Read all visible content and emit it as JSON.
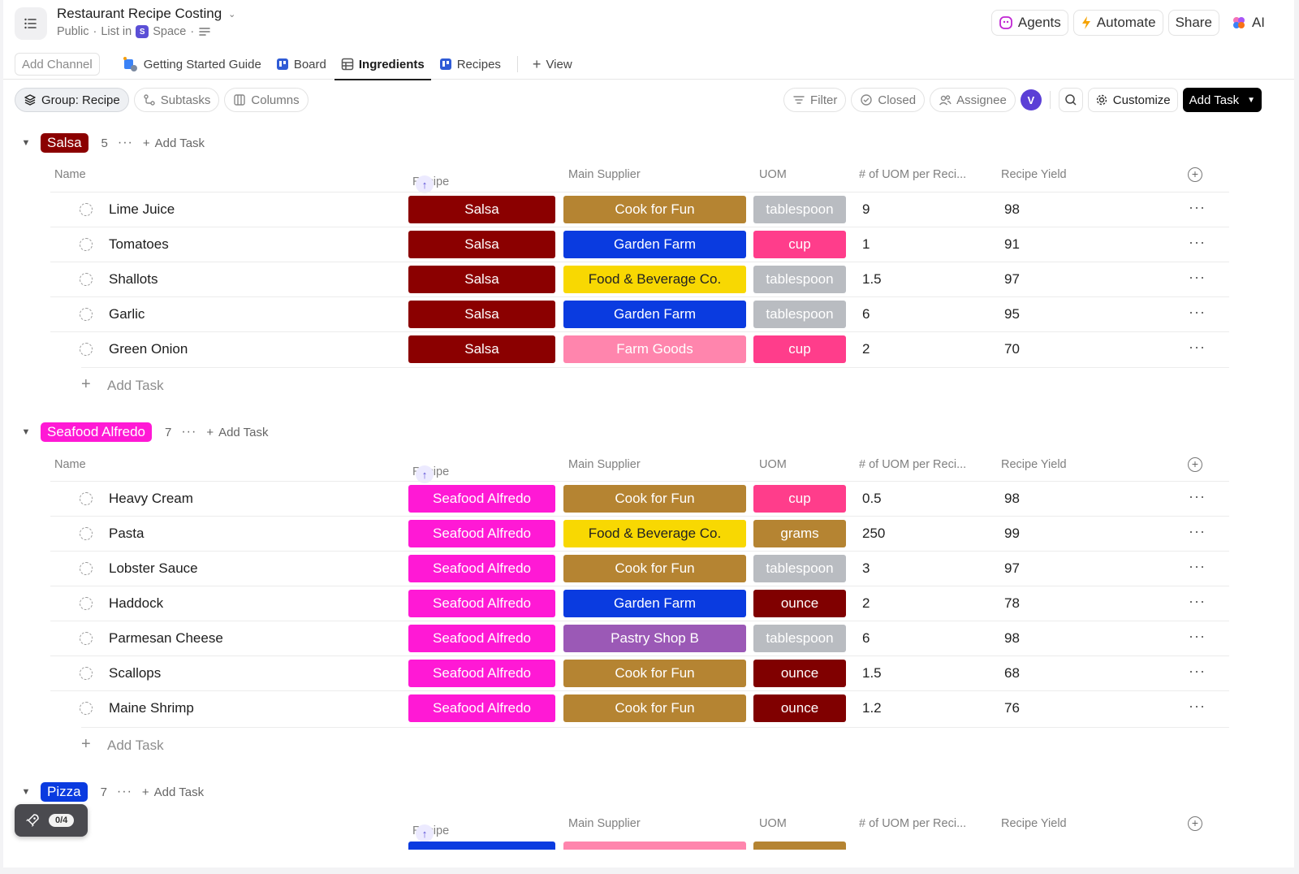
{
  "header": {
    "title": "Restaurant Recipe Costing",
    "crumb_public": "Public",
    "crumb_list_in": "List in",
    "crumb_space_letter": "S",
    "crumb_space": "Space",
    "agents": "Agents",
    "automate": "Automate",
    "share": "Share",
    "ai": "AI"
  },
  "tabs": {
    "add_channel": "Add Channel",
    "items": [
      "Getting Started Guide",
      "Board",
      "Ingredients",
      "Recipes"
    ],
    "view": "View"
  },
  "toolbar": {
    "group": "Group: Recipe",
    "subtasks": "Subtasks",
    "columns": "Columns",
    "filter": "Filter",
    "closed": "Closed",
    "assignee": "Assignee",
    "avatar": "V",
    "customize": "Customize",
    "add_task": "Add Task"
  },
  "columns": {
    "name": "Name",
    "recipe": "Recipe",
    "supplier": "Main Supplier",
    "uom": "UOM",
    "qty": "# of UOM per Reci...",
    "yield": "Recipe Yield"
  },
  "colors": {
    "salsa": "#8b0000",
    "seafood": "#ff19d5",
    "pizza": "#0a3be0",
    "cook_for_fun": "#b58432",
    "garden_farm": "#0a3be0",
    "food_bev": "#f8d802",
    "farm_goods": "#ff85ad",
    "pastry": "#9b59b6",
    "tablespoon": "#b9bcc1",
    "cup": "#ff3d8b",
    "grams": "#b58432",
    "ounce": "#800000"
  },
  "groups": {
    "salsa": {
      "label": "Salsa",
      "count": "5",
      "add_task": "Add Task",
      "rows": [
        {
          "name": "Lime Juice",
          "recipe": "Salsa",
          "supplier": "Cook for Fun",
          "uom": "tablespoon",
          "qty": "9",
          "yield": "98"
        },
        {
          "name": "Tomatoes",
          "recipe": "Salsa",
          "supplier": "Garden Farm",
          "uom": "cup",
          "qty": "1",
          "yield": "91"
        },
        {
          "name": "Shallots",
          "recipe": "Salsa",
          "supplier": "Food & Beverage Co.",
          "uom": "tablespoon",
          "qty": "1.5",
          "yield": "97"
        },
        {
          "name": "Garlic",
          "recipe": "Salsa",
          "supplier": "Garden Farm",
          "uom": "tablespoon",
          "qty": "6",
          "yield": "95"
        },
        {
          "name": "Green Onion",
          "recipe": "Salsa",
          "supplier": "Farm Goods",
          "uom": "cup",
          "qty": "2",
          "yield": "70"
        }
      ]
    },
    "seafood": {
      "label": "Seafood Alfredo",
      "count": "7",
      "add_task": "Add Task",
      "rows": [
        {
          "name": "Heavy Cream",
          "recipe": "Seafood Alfredo",
          "supplier": "Cook for Fun",
          "uom": "cup",
          "qty": "0.5",
          "yield": "98"
        },
        {
          "name": "Pasta",
          "recipe": "Seafood Alfredo",
          "supplier": "Food & Beverage Co.",
          "uom": "grams",
          "qty": "250",
          "yield": "99"
        },
        {
          "name": "Lobster Sauce",
          "recipe": "Seafood Alfredo",
          "supplier": "Cook for Fun",
          "uom": "tablespoon",
          "qty": "3",
          "yield": "97"
        },
        {
          "name": "Haddock",
          "recipe": "Seafood Alfredo",
          "supplier": "Garden Farm",
          "uom": "ounce",
          "qty": "2",
          "yield": "78"
        },
        {
          "name": "Parmesan Cheese",
          "recipe": "Seafood Alfredo",
          "supplier": "Pastry Shop B",
          "uom": "tablespoon",
          "qty": "6",
          "yield": "98"
        },
        {
          "name": "Scallops",
          "recipe": "Seafood Alfredo",
          "supplier": "Cook for Fun",
          "uom": "ounce",
          "qty": "1.5",
          "yield": "68"
        },
        {
          "name": "Maine Shrimp",
          "recipe": "Seafood Alfredo",
          "supplier": "Cook for Fun",
          "uom": "ounce",
          "qty": "1.2",
          "yield": "76"
        }
      ]
    },
    "pizza": {
      "label": "Pizza",
      "count": "7",
      "add_task": "Add Task"
    }
  },
  "add_task_row": "Add Task",
  "onboarding": {
    "progress": "0/4"
  }
}
